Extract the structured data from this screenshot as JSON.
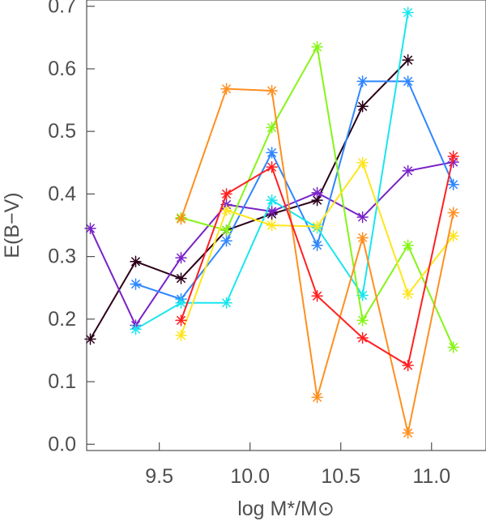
{
  "chart_data": {
    "type": "line",
    "xlabel": "log M*/M⊙",
    "ylabel": "E(B−V)",
    "xlim": [
      9.1,
      11.3
    ],
    "ylim": [
      -0.01,
      0.71
    ],
    "x_ticks": [
      9.5,
      10.0,
      10.5,
      11.0
    ],
    "x_tick_labels": [
      "9.5",
      "10.0",
      "10.5",
      "11.0"
    ],
    "y_ticks": [
      0.0,
      0.1,
      0.2,
      0.3,
      0.4,
      0.5,
      0.6,
      0.7
    ],
    "y_tick_labels": [
      "0.0",
      "0.1",
      "0.2",
      "0.3",
      "0.4",
      "0.5",
      "0.6",
      "0.7"
    ],
    "grid": false,
    "marker": "asterisk",
    "series": [
      {
        "color": "#2b0018",
        "x": [
          9.12,
          9.37,
          9.62,
          9.87,
          10.12,
          10.37,
          10.62,
          10.87
        ],
        "y": [
          0.168,
          0.292,
          0.265,
          0.342,
          0.368,
          0.39,
          0.54,
          0.614
        ]
      },
      {
        "color": "#7a22c8",
        "x": [
          9.12,
          9.37,
          9.62,
          9.87,
          10.12,
          10.37,
          10.62,
          10.87,
          11.12
        ],
        "y": [
          0.345,
          0.19,
          0.298,
          0.383,
          0.372,
          0.402,
          0.363,
          0.437,
          0.451
        ]
      },
      {
        "color": "#2f86ff",
        "x": [
          9.37,
          9.62,
          9.87,
          10.12,
          10.37,
          10.62,
          10.87,
          11.12
        ],
        "y": [
          0.256,
          0.232,
          0.325,
          0.466,
          0.318,
          0.58,
          0.58,
          0.415
        ]
      },
      {
        "color": "#19e6ee",
        "x": [
          9.37,
          9.62,
          9.87,
          10.12,
          10.37,
          10.62,
          10.87
        ],
        "y": [
          0.184,
          0.226,
          0.226,
          0.39,
          0.346,
          0.238,
          0.69
        ]
      },
      {
        "color": "#86f516",
        "x": [
          9.62,
          9.87,
          10.12,
          10.37,
          10.62,
          10.87,
          11.12
        ],
        "y": [
          0.362,
          0.342,
          0.506,
          0.635,
          0.198,
          0.318,
          0.155
        ]
      },
      {
        "color": "#ffe51c",
        "x": [
          9.62,
          9.87,
          10.12,
          10.37,
          10.62,
          10.87,
          11.12
        ],
        "y": [
          0.174,
          0.374,
          0.35,
          0.348,
          0.45,
          0.24,
          0.333
        ]
      },
      {
        "color": "#ff8f1f",
        "x": [
          9.62,
          9.87,
          10.12,
          10.37,
          10.62,
          10.87,
          11.12
        ],
        "y": [
          0.36,
          0.568,
          0.565,
          0.075,
          0.33,
          0.018,
          0.37
        ]
      },
      {
        "color": "#ff2020",
        "x": [
          9.62,
          9.87,
          10.12,
          10.37,
          10.62,
          10.87,
          11.12
        ],
        "y": [
          0.198,
          0.4,
          0.443,
          0.237,
          0.17,
          0.126,
          0.46
        ]
      }
    ]
  }
}
